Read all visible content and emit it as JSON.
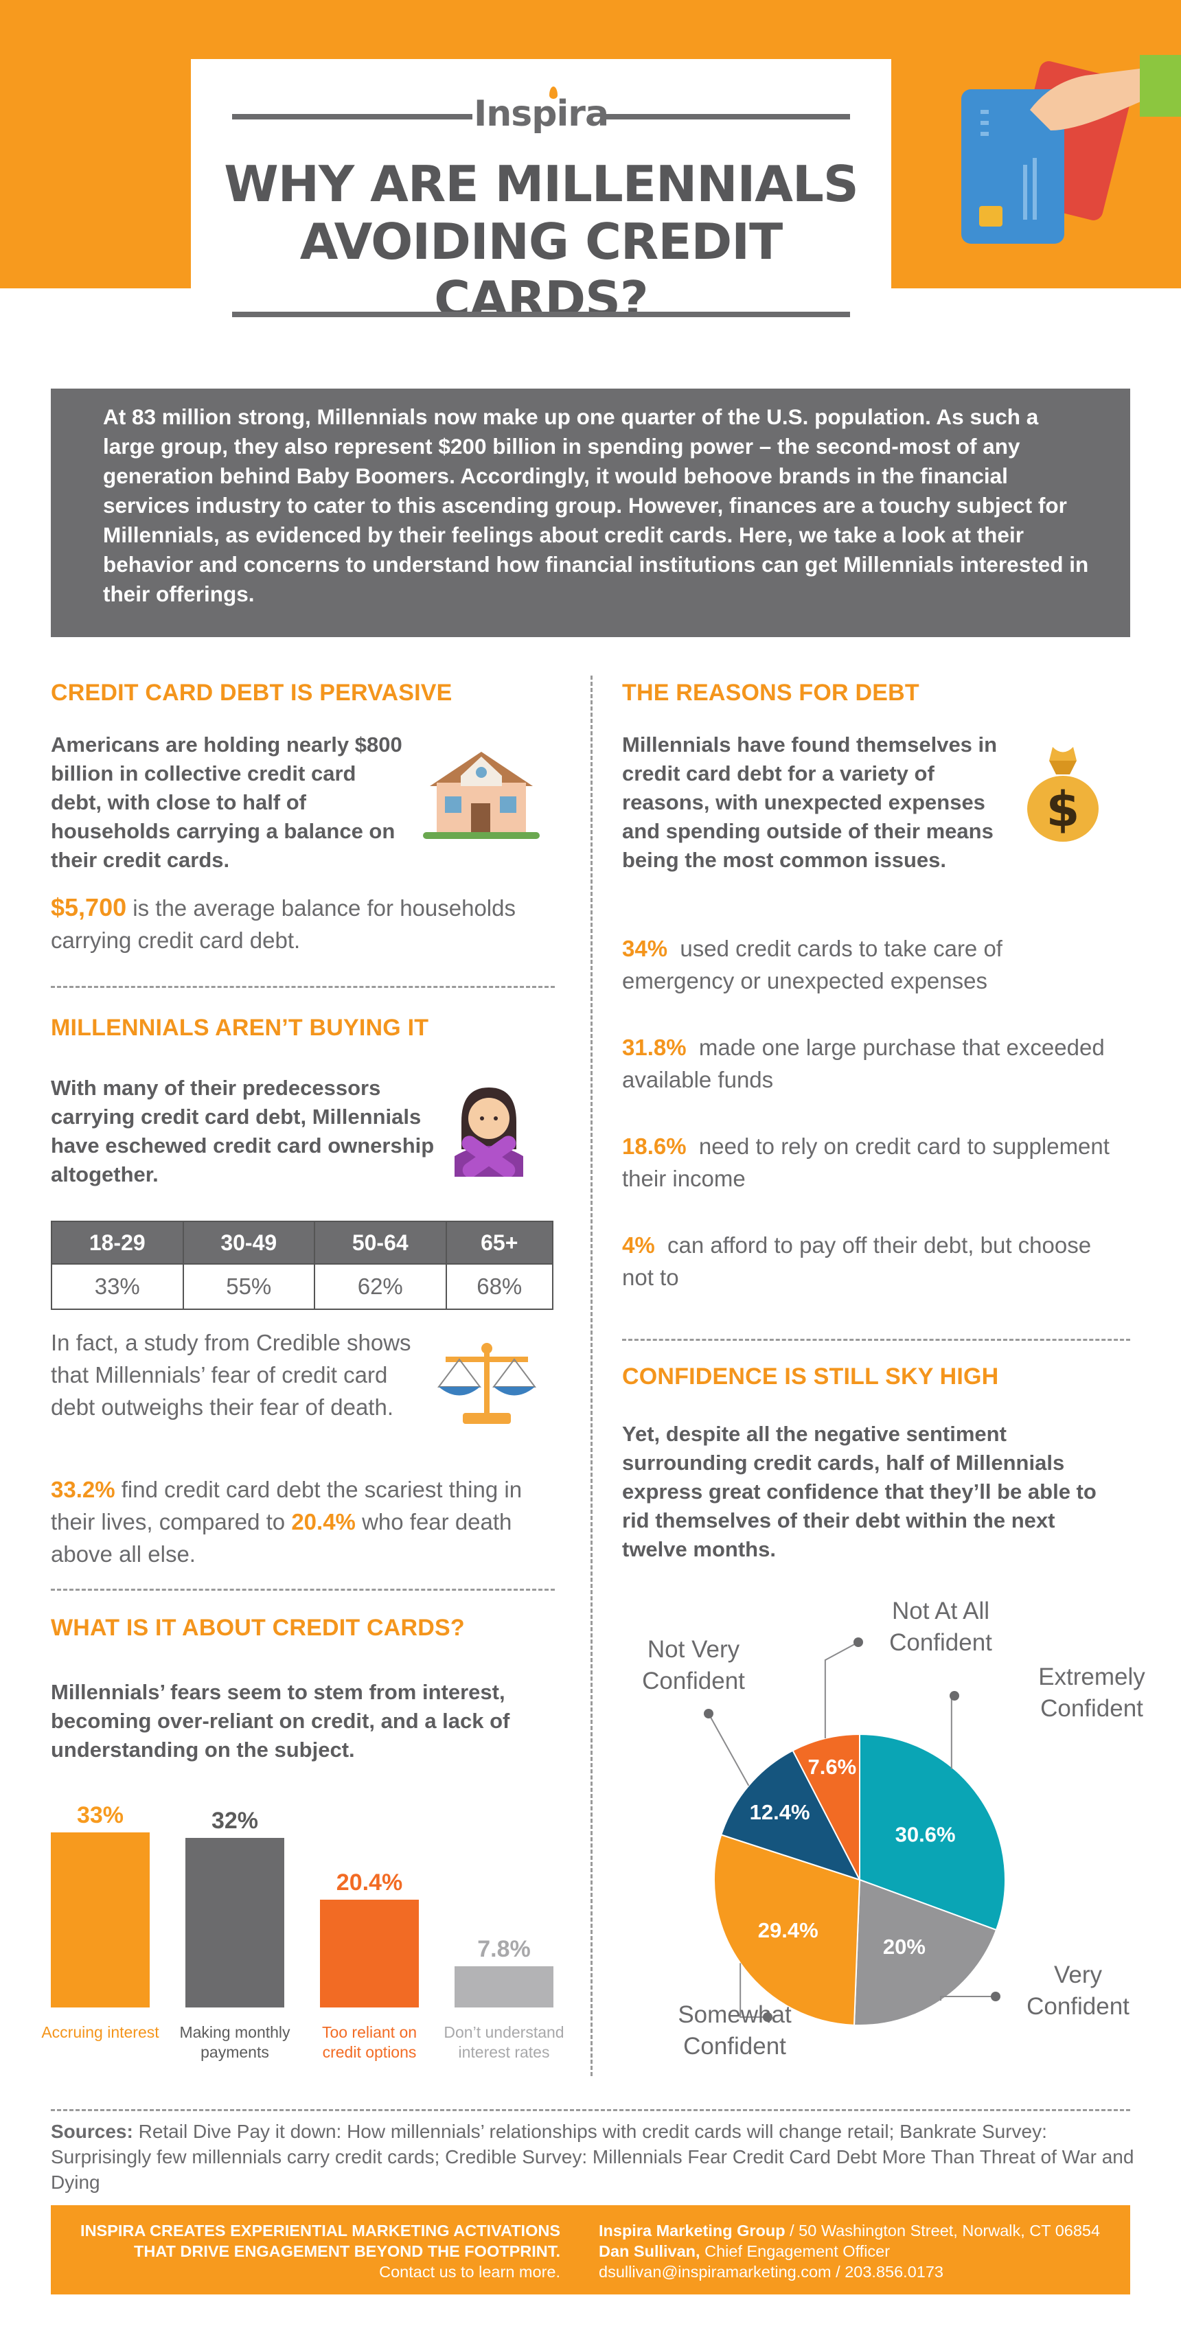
{
  "header": {
    "logo": "Inspira",
    "title_line1": "WHY ARE MILLENNIALS",
    "title_line2": "AVOIDING CREDIT CARDS?"
  },
  "intro": "At 83 million strong, Millennials now make up one quarter of the U.S. population. As such a large group, they also represent $200 billion in spending power – the second-most of any generation behind Baby Boomers. Accordingly, it would behoove brands in the financial services industry to cater to this ascending group. However, finances are a touchy subject for Millennials, as evidenced by their feelings about credit cards. Here, we take a look at their behavior and concerns to understand how financial institutions can get Millennials interested in their offerings.",
  "debt": {
    "title": "CREDIT CARD DEBT IS PERVASIVE",
    "lead": "Americans are holding nearly $800 billion in collective credit card debt, with close to half of households carrying a balance on their credit cards.",
    "stat_value": "$5,700",
    "stat_text": " is the average balance for households carrying credit card debt."
  },
  "notbuying": {
    "title": "MILLENNIALS AREN’T BUYING IT",
    "lead": "With many of their predecessors carrying credit card debt, Millennials have eschewed credit card ownership altogether.",
    "table_headers": [
      "18-29",
      "30-49",
      "50-64",
      "65+"
    ],
    "table_values": [
      "33%",
      "55%",
      "62%",
      "68%"
    ],
    "study_text": "In fact, a study from Credible shows that Millennials’ fear of credit card debt outweighs their fear of death.",
    "stat1_value": "33.2%",
    "stat1_text": " find credit card debt the scariest thing in their lives, compared to ",
    "stat2_value": "20.4%",
    "stat2_text": " who fear death above all else."
  },
  "about": {
    "title": "WHAT IS IT ABOUT CREDIT CARDS?",
    "lead": "Millennials’ fears seem to stem from interest, becoming over-reliant on credit, and a lack of understanding on the subject."
  },
  "reasons": {
    "title": "THE REASONS FOR DEBT",
    "lead": "Millennials have found themselves in credit card debt for a variety of reasons, with unexpected expenses and spending outside of their means being the most common issues.",
    "items": [
      {
        "value": "34%",
        "text": "used credit cards to take care of emergency or unexpected expenses"
      },
      {
        "value": "31.8%",
        "text": "made one large purchase that exceeded available funds"
      },
      {
        "value": "18.6%",
        "text": "need to rely on credit card to supplement their income"
      },
      {
        "value": "4%",
        "text": "can afford to pay off their debt, but choose not to"
      }
    ]
  },
  "confidence": {
    "title": "CONFIDENCE IS STILL SKY HIGH",
    "lead": "Yet, despite all the negative sentiment surrounding credit cards, half of Millennials express great confidence that they’ll be able to rid themselves of their debt within the next twelve months."
  },
  "chart_data": [
    {
      "type": "bar",
      "categories": [
        "Accruing interest",
        "Making monthly payments",
        "Too reliant on credit options",
        "Don’t understand interest rates"
      ],
      "values": [
        33,
        32,
        20.4,
        7.8
      ],
      "value_labels": [
        "33%",
        "32%",
        "20.4%",
        "7.8%"
      ],
      "colors": [
        "#f79a1e",
        "#6b6b6d",
        "#f26b24",
        "#b3b3b5"
      ],
      "ylim": [
        0,
        35
      ]
    },
    {
      "type": "pie",
      "categories": [
        "Extremely Confident",
        "Very Confident",
        "Somewhat Confident",
        "Not Very Confident",
        "Not At All Confident"
      ],
      "values": [
        30.6,
        20,
        29.4,
        12.4,
        7.6
      ],
      "value_labels": [
        "30.6%",
        "20%",
        "29.4%",
        "12.4%",
        "7.6%"
      ],
      "colors": [
        "#0aa5b5",
        "#959597",
        "#f79a1e",
        "#15557e",
        "#f26b24"
      ]
    }
  ],
  "sources": {
    "label": "Sources:",
    "text": " Retail Dive Pay it down: How millennials’ relationships with credit cards will change retail; Bankrate Survey: Surprisingly few millennials carry credit cards; Credible Survey: Millennials Fear Credit Card Debt More Than Threat of War and Dying"
  },
  "footer": {
    "left_line1": "INSPIRA CREATES EXPERIENTIAL MARKETING ACTIVATIONS",
    "left_line2": "THAT DRIVE ENGAGEMENT BEYOND THE FOOTPRINT.",
    "left_line3": "Contact us to learn more.",
    "company": "Inspira Marketing Group",
    "address": " / 50 Washington Street, Norwalk, CT 06854",
    "person": "Dan Sullivan,",
    "role": " Chief Engagement Officer",
    "contact": "dsullivan@inspiramarketing.com / 203.856.0173"
  }
}
